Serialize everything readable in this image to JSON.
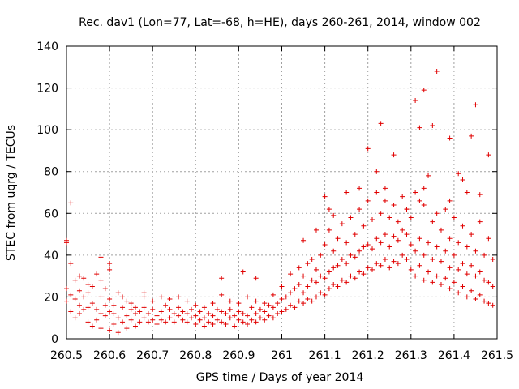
{
  "chart_data": {
    "type": "scatter",
    "title": "Rec. dav1 (Lon=77, Lat=-68, h=HE), days 260-261, 2014, window 002",
    "xlabel": "GPS time / Days of year 2014",
    "ylabel": "STEC from uqrg / TECUs",
    "xlim": [
      260.5,
      261.5
    ],
    "ylim": [
      0,
      140
    ],
    "x_ticks": [
      "260.5",
      "260.6",
      "260.7",
      "260.8",
      "260.9",
      "261",
      "261.1",
      "261.2",
      "261.3",
      "261.4",
      "261.5"
    ],
    "y_ticks": [
      "0",
      "20",
      "40",
      "60",
      "80",
      "100",
      "120",
      "140"
    ],
    "grid": true,
    "marker": "+",
    "colors": {
      "points": "#e00000",
      "grid": "#a0a0a0",
      "axes": "#000000"
    },
    "series": [
      {
        "x": [
          260.5,
          260.5,
          260.5,
          260.51,
          260.51,
          260.51,
          260.52,
          260.52,
          260.52,
          260.53,
          260.53,
          260.53,
          260.53,
          260.54,
          260.54,
          260.54,
          260.55,
          260.55,
          260.55,
          260.55,
          260.56,
          260.56,
          260.56,
          260.57,
          260.57,
          260.57,
          260.58,
          260.58,
          260.58,
          260.58,
          260.59,
          260.59,
          260.59,
          260.6,
          260.6,
          260.6,
          260.6,
          260.61,
          260.61,
          260.61,
          260.62,
          260.62,
          260.62,
          260.63,
          260.63,
          260.63,
          260.64,
          260.64,
          260.64,
          260.65,
          260.65,
          260.65,
          260.66,
          260.66,
          260.66,
          260.67,
          260.67,
          260.68,
          260.68,
          260.68,
          260.69,
          260.69,
          260.7,
          260.7,
          260.7,
          260.71,
          260.71,
          260.72,
          260.72,
          260.72,
          260.73,
          260.73,
          260.74,
          260.74,
          260.74,
          260.75,
          260.75,
          260.76,
          260.76,
          260.76,
          260.77,
          260.77,
          260.78,
          260.78,
          260.78,
          260.79,
          260.79,
          260.8,
          260.8,
          260.8,
          260.81,
          260.81,
          260.82,
          260.82,
          260.82,
          260.83,
          260.83,
          260.84,
          260.84,
          260.84,
          260.85,
          260.85,
          260.86,
          260.86,
          260.86,
          260.87,
          260.87,
          260.88,
          260.88,
          260.88,
          260.89,
          260.89,
          260.9,
          260.9,
          260.9,
          260.91,
          260.91,
          260.92,
          260.92,
          260.92,
          260.93,
          260.93,
          260.94,
          260.94,
          260.94,
          260.95,
          260.95,
          260.96,
          260.96,
          260.96,
          260.97,
          260.97,
          260.98,
          260.98,
          260.98,
          260.99,
          260.99,
          261.0,
          261.0,
          261.0,
          261.01,
          261.01,
          261.02,
          261.02,
          261.02,
          261.03,
          261.03,
          261.04,
          261.04,
          261.04,
          261.05,
          261.05,
          261.05,
          261.06,
          261.06,
          261.06,
          261.07,
          261.07,
          261.07,
          261.08,
          261.08,
          261.08,
          261.09,
          261.09,
          261.09,
          261.1,
          261.1,
          261.1,
          261.11,
          261.11,
          261.11,
          261.12,
          261.12,
          261.12,
          261.13,
          261.13,
          261.13,
          261.14,
          261.14,
          261.14,
          261.15,
          261.15,
          261.15,
          261.16,
          261.16,
          261.16,
          261.17,
          261.17,
          261.17,
          261.18,
          261.18,
          261.18,
          261.19,
          261.19,
          261.19,
          261.2,
          261.2,
          261.2,
          261.21,
          261.21,
          261.21,
          261.22,
          261.22,
          261.22,
          261.23,
          261.23,
          261.23,
          261.24,
          261.24,
          261.24,
          261.25,
          261.25,
          261.25,
          261.26,
          261.26,
          261.26,
          261.27,
          261.27,
          261.27,
          261.28,
          261.28,
          261.28,
          261.29,
          261.29,
          261.29,
          261.3,
          261.3,
          261.3,
          261.31,
          261.31,
          261.31,
          261.32,
          261.32,
          261.32,
          261.33,
          261.33,
          261.33,
          261.34,
          261.34,
          261.34,
          261.35,
          261.35,
          261.35,
          261.36,
          261.36,
          261.36,
          261.37,
          261.37,
          261.37,
          261.38,
          261.38,
          261.38,
          261.39,
          261.39,
          261.39,
          261.4,
          261.4,
          261.4,
          261.41,
          261.41,
          261.41,
          261.42,
          261.42,
          261.42,
          261.43,
          261.43,
          261.43,
          261.44,
          261.44,
          261.44,
          261.45,
          261.45,
          261.45,
          261.46,
          261.46,
          261.46,
          261.47,
          261.47,
          261.47,
          261.48,
          261.48,
          261.48,
          261.49,
          261.49,
          261.49,
          260.5,
          260.51,
          260.53,
          260.58,
          260.6,
          260.68,
          260.86,
          260.91,
          260.94,
          261.05,
          261.08,
          261.1,
          261.11,
          261.12,
          261.15,
          261.18,
          261.2,
          261.22,
          261.23,
          261.24,
          261.26,
          261.29,
          261.31,
          261.32,
          261.33,
          261.33,
          261.35,
          261.36,
          261.39,
          261.39,
          261.41,
          261.42,
          261.43,
          261.44,
          261.45,
          261.46,
          261.48
        ],
        "y": [
          18,
          24,
          46,
          21,
          36,
          13,
          10,
          19,
          28,
          16,
          23,
          30,
          12,
          14,
          20,
          29,
          8,
          15,
          22,
          26,
          6,
          17,
          25,
          9,
          14,
          31,
          5,
          12,
          20,
          28,
          11,
          16,
          24,
          4,
          13,
          19,
          33,
          7,
          12,
          16,
          3,
          10,
          22,
          8,
          15,
          20,
          5,
          11,
          18,
          9,
          14,
          17,
          6,
          12,
          15,
          8,
          13,
          10,
          15,
          22,
          8,
          12,
          9,
          14,
          18,
          7,
          11,
          9,
          13,
          20,
          8,
          16,
          10,
          14,
          19,
          8,
          12,
          11,
          15,
          20,
          9,
          13,
          8,
          12,
          18,
          10,
          14,
          7,
          11,
          16,
          9,
          13,
          6,
          10,
          15,
          8,
          12,
          7,
          11,
          17,
          9,
          14,
          8,
          13,
          21,
          7,
          12,
          10,
          14,
          18,
          6,
          11,
          9,
          13,
          17,
          8,
          12,
          7,
          11,
          20,
          9,
          15,
          8,
          12,
          18,
          10,
          14,
          9,
          13,
          17,
          11,
          16,
          10,
          15,
          21,
          12,
          17,
          13,
          19,
          25,
          14,
          20,
          16,
          22,
          31,
          15,
          24,
          18,
          26,
          34,
          17,
          22,
          30,
          19,
          25,
          36,
          18,
          28,
          38,
          20,
          27,
          33,
          22,
          30,
          40,
          21,
          29,
          45,
          24,
          32,
          52,
          26,
          34,
          42,
          25,
          35,
          48,
          28,
          38,
          55,
          27,
          36,
          46,
          30,
          40,
          58,
          29,
          39,
          50,
          32,
          42,
          62,
          31,
          44,
          54,
          34,
          45,
          66,
          33,
          43,
          57,
          36,
          48,
          70,
          35,
          46,
          60,
          38,
          50,
          72,
          34,
          44,
          58,
          37,
          49,
          64,
          36,
          47,
          56,
          40,
          52,
          68,
          38,
          50,
          62,
          33,
          45,
          58,
          30,
          42,
          70,
          35,
          48,
          66,
          28,
          40,
          64,
          32,
          46,
          78,
          27,
          38,
          56,
          30,
          44,
          60,
          26,
          37,
          52,
          29,
          42,
          62,
          24,
          34,
          48,
          27,
          40,
          58,
          22,
          33,
          46,
          25,
          36,
          54,
          20,
          31,
          44,
          23,
          35,
          50,
          19,
          30,
          42,
          21,
          32,
          56,
          18,
          28,
          40,
          17,
          27,
          48,
          16,
          25,
          38,
          47,
          65,
          30,
          39,
          36,
          20,
          29,
          32,
          29,
          47,
          52,
          68,
          62,
          59,
          70,
          72,
          91,
          80,
          103,
          66,
          88,
          62,
          114,
          101,
          119,
          72,
          102,
          128,
          96,
          66,
          79,
          76,
          70,
          97,
          112,
          69,
          88
        ]
      }
    ]
  }
}
